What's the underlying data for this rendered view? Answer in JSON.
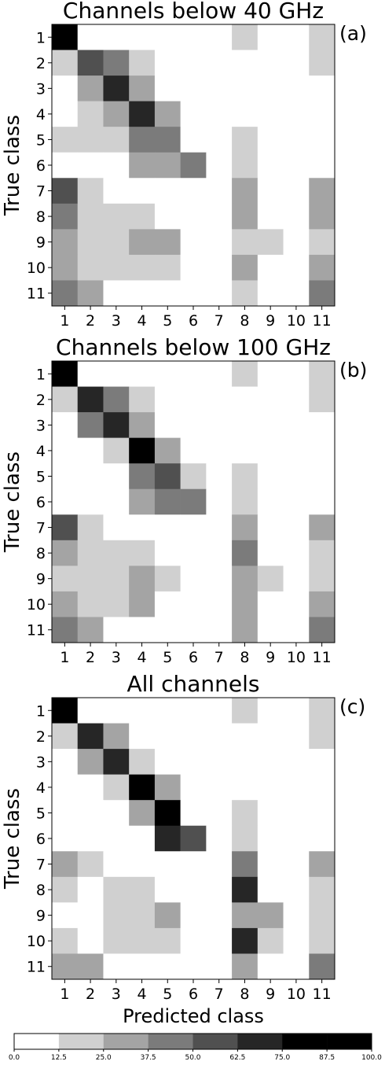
{
  "chart_data": [
    {
      "type": "heatmap",
      "title": "Channels below 40 GHz",
      "panel_label": "(a)",
      "ylabel": "True class",
      "xlabel": "",
      "x_categories": [
        "1",
        "2",
        "3",
        "4",
        "5",
        "6",
        "7",
        "8",
        "9",
        "10",
        "11"
      ],
      "y_categories": [
        "1",
        "2",
        "3",
        "4",
        "5",
        "6",
        "7",
        "8",
        "9",
        "10",
        "11"
      ],
      "levels": [
        [
          7,
          0,
          0,
          0,
          0,
          0,
          0,
          1,
          0,
          0,
          1
        ],
        [
          1,
          4,
          3,
          1,
          0,
          0,
          0,
          0,
          0,
          0,
          1
        ],
        [
          0,
          2,
          5,
          2,
          0,
          0,
          0,
          0,
          0,
          0,
          0
        ],
        [
          0,
          1,
          2,
          5,
          2,
          0,
          0,
          0,
          0,
          0,
          0
        ],
        [
          1,
          1,
          1,
          3,
          3,
          0,
          0,
          1,
          0,
          0,
          0
        ],
        [
          0,
          0,
          0,
          2,
          2,
          3,
          0,
          1,
          0,
          0,
          0
        ],
        [
          4,
          1,
          0,
          0,
          0,
          0,
          0,
          2,
          0,
          0,
          2
        ],
        [
          3,
          1,
          1,
          1,
          0,
          0,
          0,
          2,
          0,
          0,
          2
        ],
        [
          2,
          1,
          1,
          2,
          2,
          0,
          0,
          1,
          1,
          0,
          1
        ],
        [
          2,
          1,
          1,
          1,
          1,
          0,
          0,
          2,
          0,
          0,
          2
        ],
        [
          3,
          2,
          0,
          0,
          0,
          0,
          0,
          1,
          0,
          0,
          3
        ]
      ]
    },
    {
      "type": "heatmap",
      "title": "Channels below 100 GHz",
      "panel_label": "(b)",
      "ylabel": "True class",
      "xlabel": "",
      "x_categories": [
        "1",
        "2",
        "3",
        "4",
        "5",
        "6",
        "7",
        "8",
        "9",
        "10",
        "11"
      ],
      "y_categories": [
        "1",
        "2",
        "3",
        "4",
        "5",
        "6",
        "7",
        "8",
        "9",
        "10",
        "11"
      ],
      "levels": [
        [
          7,
          0,
          0,
          0,
          0,
          0,
          0,
          1,
          0,
          0,
          1
        ],
        [
          1,
          5,
          3,
          1,
          0,
          0,
          0,
          0,
          0,
          0,
          1
        ],
        [
          0,
          3,
          5,
          2,
          0,
          0,
          0,
          0,
          0,
          0,
          0
        ],
        [
          0,
          0,
          1,
          6,
          2,
          0,
          0,
          0,
          0,
          0,
          0
        ],
        [
          0,
          0,
          0,
          3,
          4,
          1,
          0,
          1,
          0,
          0,
          0
        ],
        [
          0,
          0,
          0,
          2,
          3,
          3,
          0,
          1,
          0,
          0,
          0
        ],
        [
          4,
          1,
          0,
          0,
          0,
          0,
          0,
          2,
          0,
          0,
          2
        ],
        [
          2,
          1,
          1,
          1,
          0,
          0,
          0,
          3,
          0,
          0,
          1
        ],
        [
          1,
          1,
          1,
          2,
          1,
          0,
          0,
          2,
          1,
          0,
          1
        ],
        [
          2,
          1,
          1,
          2,
          0,
          0,
          0,
          2,
          0,
          0,
          2
        ],
        [
          3,
          2,
          0,
          0,
          0,
          0,
          0,
          2,
          0,
          0,
          3
        ]
      ]
    },
    {
      "type": "heatmap",
      "title": "All channels",
      "panel_label": "(c)",
      "ylabel": "True class",
      "xlabel": "Predicted class",
      "x_categories": [
        "1",
        "2",
        "3",
        "4",
        "5",
        "6",
        "7",
        "8",
        "9",
        "10",
        "11"
      ],
      "y_categories": [
        "1",
        "2",
        "3",
        "4",
        "5",
        "6",
        "7",
        "8",
        "9",
        "10",
        "11"
      ],
      "levels": [
        [
          7,
          0,
          0,
          0,
          0,
          0,
          0,
          1,
          0,
          0,
          1
        ],
        [
          1,
          5,
          2,
          0,
          0,
          0,
          0,
          0,
          0,
          0,
          1
        ],
        [
          0,
          2,
          5,
          1,
          0,
          0,
          0,
          0,
          0,
          0,
          0
        ],
        [
          0,
          0,
          1,
          6,
          2,
          0,
          0,
          0,
          0,
          0,
          0
        ],
        [
          0,
          0,
          0,
          2,
          6,
          0,
          0,
          1,
          0,
          0,
          0
        ],
        [
          0,
          0,
          0,
          0,
          5,
          4,
          0,
          1,
          0,
          0,
          0
        ],
        [
          2,
          1,
          0,
          0,
          0,
          0,
          0,
          3,
          0,
          0,
          2
        ],
        [
          1,
          0,
          1,
          1,
          0,
          0,
          0,
          5,
          0,
          0,
          1
        ],
        [
          0,
          0,
          1,
          1,
          2,
          0,
          0,
          2,
          2,
          0,
          1
        ],
        [
          1,
          0,
          1,
          1,
          1,
          0,
          0,
          5,
          1,
          0,
          1
        ],
        [
          2,
          2,
          0,
          0,
          0,
          0,
          0,
          2,
          0,
          0,
          3
        ]
      ]
    }
  ],
  "colorbar": {
    "ticks": [
      "0.0",
      "12.5",
      "25.0",
      "37.5",
      "50.0",
      "62.5",
      "75.0",
      "87.5",
      "100.0"
    ],
    "colors": [
      "#ffffff",
      "#d0d0d0",
      "#a4a4a4",
      "#7b7b7b",
      "#505050",
      "#262626",
      "#000000",
      "#000000"
    ]
  }
}
